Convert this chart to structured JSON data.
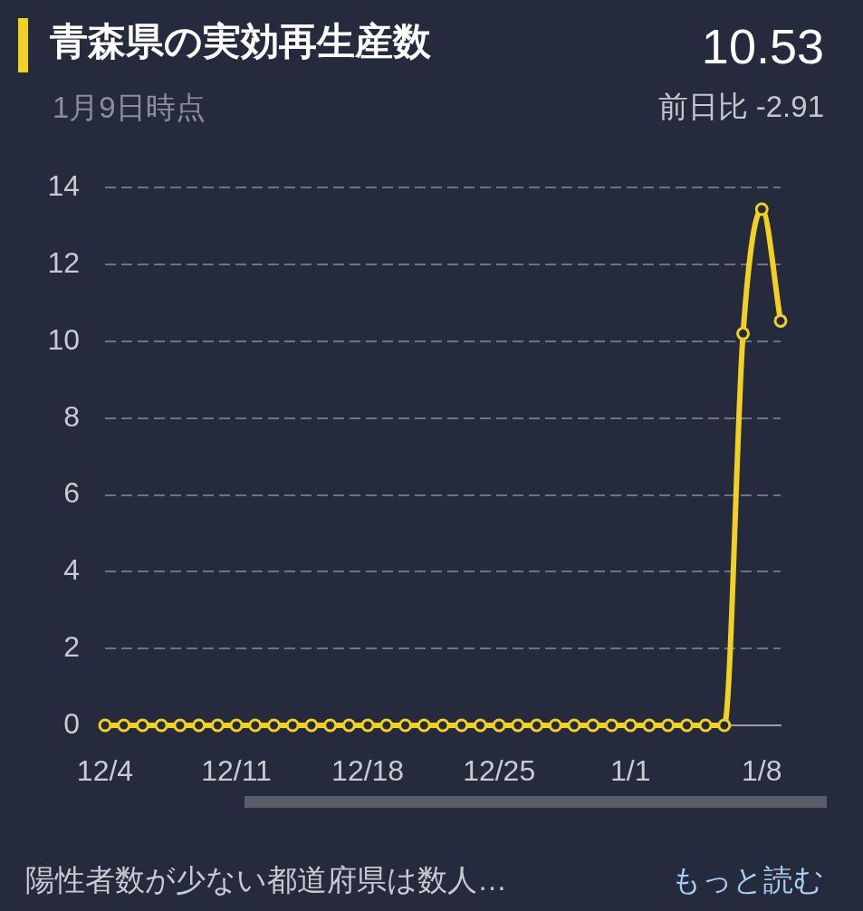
{
  "chart_data": {
    "type": "line",
    "title": "青森県の実効再生産数",
    "subtitle": "1月9日時点",
    "categories": [
      "12/4",
      null,
      null,
      null,
      null,
      null,
      null,
      "12/11",
      null,
      null,
      null,
      null,
      null,
      null,
      "12/18",
      null,
      null,
      null,
      null,
      null,
      null,
      "12/25",
      null,
      null,
      null,
      null,
      null,
      null,
      "1/1",
      null,
      null,
      null,
      null,
      null,
      null,
      "1/8",
      null
    ],
    "series": [
      {
        "color": "#f2d024",
        "values": [
          0,
          0,
          0,
          0,
          0,
          0,
          0,
          0,
          0,
          0,
          0,
          0,
          0,
          0,
          0,
          0,
          0,
          0,
          0,
          0,
          0,
          0,
          0,
          0,
          0,
          0,
          0,
          0,
          0,
          0,
          0,
          0,
          0,
          0,
          10.2,
          13.44,
          10.53
        ]
      }
    ],
    "ylim": [
      0,
      14
    ],
    "yticks": [
      0,
      2,
      4,
      6,
      8,
      10,
      12,
      14
    ],
    "grid": "y",
    "legend": false,
    "marker": "circle",
    "line_style": "solid",
    "annotations": [
      "10.53",
      "前日比 -2.91",
      "陽性者数が少ない都道府県は数人…",
      "もっと読む"
    ]
  }
}
